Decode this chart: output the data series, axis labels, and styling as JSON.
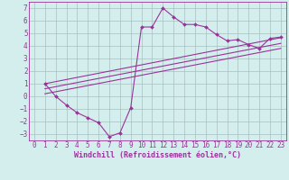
{
  "xlabel": "Windchill (Refroidissement éolien,°C)",
  "bg_color": "#d4eeed",
  "grid_color": "#aac0c0",
  "line_color": "#993399",
  "xlim": [
    -0.5,
    23.5
  ],
  "ylim": [
    -3.5,
    7.5
  ],
  "yticks": [
    -3,
    -2,
    -1,
    0,
    1,
    2,
    3,
    4,
    5,
    6,
    7
  ],
  "xticks": [
    0,
    1,
    2,
    3,
    4,
    5,
    6,
    7,
    8,
    9,
    10,
    11,
    12,
    13,
    14,
    15,
    16,
    17,
    18,
    19,
    20,
    21,
    22,
    23
  ],
  "curve_x": [
    1,
    2,
    3,
    4,
    5,
    6,
    7,
    8,
    9,
    10,
    11,
    12,
    13,
    14,
    15,
    16,
    17,
    18,
    19,
    20,
    21,
    22,
    23
  ],
  "curve_y": [
    1.0,
    0.0,
    -0.7,
    -1.3,
    -1.7,
    -2.1,
    -3.2,
    -2.9,
    -0.9,
    5.5,
    5.5,
    7.0,
    6.3,
    5.7,
    5.7,
    5.5,
    4.9,
    4.4,
    4.5,
    4.1,
    3.8,
    4.6,
    4.7
  ],
  "line1_x": [
    1,
    23
  ],
  "line1_y": [
    1.0,
    4.65
  ],
  "line2_x": [
    1,
    23
  ],
  "line2_y": [
    0.6,
    4.2
  ],
  "line3_x": [
    1,
    23
  ],
  "line3_y": [
    0.2,
    3.8
  ],
  "tick_fontsize": 5.5,
  "xlabel_fontsize": 6.0
}
